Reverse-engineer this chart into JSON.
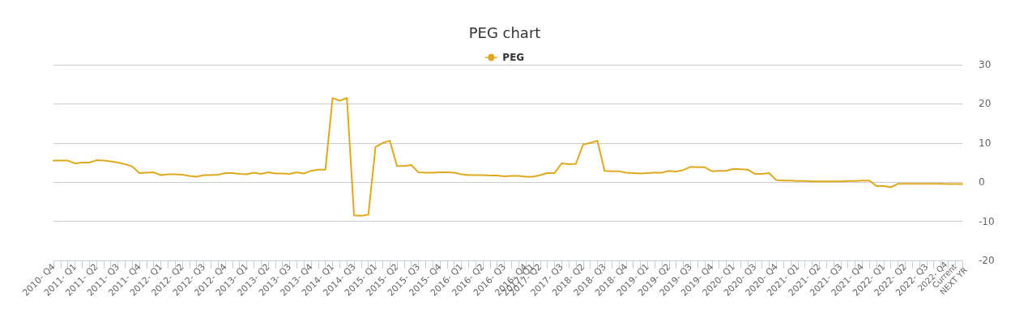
{
  "chart_data": {
    "type": "line",
    "title": "PEG chart",
    "categories": [
      "2010- Q4",
      null,
      null,
      "2011- Q1",
      null,
      null,
      "2011- Q2",
      null,
      null,
      "2011- Q3",
      null,
      null,
      "2011- Q4",
      null,
      null,
      "2012- Q1",
      null,
      null,
      "2012- Q2",
      null,
      null,
      "2012- Q3",
      null,
      null,
      "2012- Q4",
      null,
      null,
      "2013- Q1",
      null,
      null,
      "2013- Q2",
      null,
      null,
      "2013- Q3",
      null,
      null,
      "2013- Q4",
      null,
      null,
      "2014- Q1",
      null,
      null,
      "2014- Q3",
      null,
      null,
      "2015- Q1",
      null,
      null,
      "2015- Q2",
      null,
      null,
      "2015- Q3",
      null,
      null,
      "2015- Q4",
      null,
      null,
      "2016- Q1",
      null,
      null,
      "2016- Q2",
      null,
      null,
      "2016- Q3",
      null,
      null,
      "2016- Q4",
      "2017- Q1",
      "2017- Q2",
      null,
      null,
      "2017- Q3",
      null,
      null,
      "2018- Q2",
      null,
      null,
      "2018- Q3",
      null,
      null,
      "2018- Q4",
      null,
      null,
      "2019- Q1",
      null,
      null,
      "2019- Q2",
      null,
      null,
      "2019- Q3",
      null,
      null,
      "2019- Q4",
      null,
      null,
      "2020- Q1",
      null,
      null,
      "2020- Q3",
      null,
      null,
      "2020- Q4",
      null,
      null,
      "2021- Q1",
      null,
      null,
      "2021- Q2",
      null,
      null,
      "2021- Q3",
      null,
      null,
      "2021- Q4",
      null,
      null,
      "2022- Q1",
      null,
      null,
      "2022- Q2",
      null,
      null,
      "2022- Q3",
      null,
      null,
      "2022- Q4",
      "Current",
      "NEXT YR"
    ],
    "series": [
      {
        "name": "PEG",
        "color": "#dfa91f",
        "values": [
          5.5,
          5.5,
          5.5,
          4.8,
          5.0,
          5.0,
          5.6,
          5.5,
          5.3,
          5.0,
          4.6,
          4.0,
          2.3,
          2.4,
          2.5,
          1.8,
          2.0,
          2.0,
          1.9,
          1.6,
          1.4,
          1.8,
          1.8,
          1.9,
          2.3,
          2.3,
          2.1,
          2.0,
          2.4,
          2.1,
          2.5,
          2.2,
          2.2,
          2.1,
          2.5,
          2.2,
          2.9,
          3.2,
          3.2,
          21.5,
          20.8,
          21.5,
          -8.5,
          -8.6,
          -8.3,
          9.0,
          10.0,
          10.6,
          4.1,
          4.1,
          4.4,
          2.5,
          2.4,
          2.4,
          2.5,
          2.5,
          2.4,
          2.0,
          1.8,
          1.8,
          1.8,
          1.7,
          1.7,
          1.5,
          1.6,
          1.6,
          1.4,
          1.4,
          1.8,
          2.3,
          2.3,
          4.8,
          4.6,
          4.7,
          9.6,
          10.0,
          10.6,
          2.9,
          2.8,
          2.8,
          2.4,
          2.3,
          2.2,
          2.3,
          2.4,
          2.4,
          2.9,
          2.7,
          3.1,
          3.9,
          3.8,
          3.8,
          2.8,
          2.9,
          2.9,
          3.4,
          3.3,
          3.2,
          2.1,
          2.1,
          2.3,
          0.5,
          0.4,
          0.4,
          0.3,
          0.3,
          0.2,
          0.2,
          0.2,
          0.2,
          0.2,
          0.3,
          0.3,
          0.4,
          0.4,
          -1.0,
          -1.0,
          -1.3,
          -0.4,
          -0.4,
          -0.4,
          -0.4,
          -0.4,
          -0.4,
          -0.4,
          -0.5,
          -0.5,
          -0.5
        ]
      }
    ],
    "ylim": [
      -20,
      30
    ],
    "yticks": [
      -20,
      -10,
      0,
      10,
      20,
      30
    ],
    "grid": "y",
    "legend": "top",
    "marker": "none",
    "line_style": "solid"
  }
}
